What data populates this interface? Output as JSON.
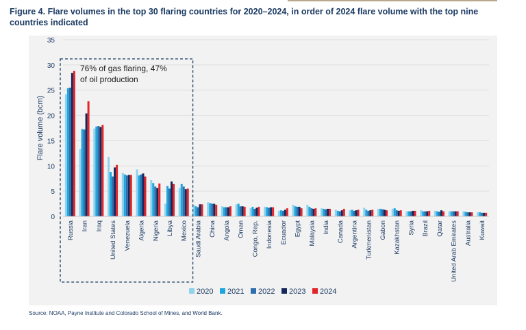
{
  "figure": {
    "title": "Figure 4. Flare volumes in the top 30 flaring countries for 2020–2024, in order of 2024 flare volume with the top nine countries indicated",
    "source": "Source: NOAA, Payne Institute and Colorado School of Mines, and World Bank."
  },
  "colors": {
    "2020": "#8fd3ee",
    "2021": "#1ea7df",
    "2022": "#2f6fad",
    "2023": "#13295b",
    "2024": "#e2252b",
    "panel": "#f2f2f2",
    "box": "#1b3a63"
  },
  "chart_data": {
    "type": "bar",
    "ylabel": "Flare volume (bcm)",
    "xlabel": "",
    "ylim": [
      0,
      35
    ],
    "yticks": [
      0,
      5,
      10,
      15,
      20,
      25,
      30,
      35
    ],
    "grid": true,
    "legend_position": "bottom-center",
    "annotation": "76% of gas flaring, 47% of oil production",
    "highlighted_count": 9,
    "categories": [
      "Russia",
      "Iran",
      "Iraq",
      "United States",
      "Venezuela",
      "Algeria",
      "Nigeria",
      "Libya",
      "Mexico",
      "Saudi Arabia",
      "China",
      "Angola",
      "Oman",
      "Congo, Rep.",
      "Indonesia",
      "Ecuador",
      "Egypt",
      "Malaysia",
      "India",
      "Canada",
      "Argentina",
      "Turkmenistan",
      "Gabon",
      "Kazakhstan",
      "Syria",
      "Brazil",
      "Qatar",
      "United Arab Emirates",
      "Australia",
      "Kuwait"
    ],
    "series": [
      {
        "name": "2020",
        "values": [
          24.2,
          13.3,
          17.4,
          11.8,
          8.6,
          9.3,
          7.2,
          2.5,
          5.6,
          2.3,
          2.8,
          2.0,
          2.4,
          1.6,
          1.9,
          1.1,
          2.3,
          2.3,
          1.6,
          1.3,
          1.2,
          1.7,
          1.5,
          1.5,
          1.0,
          1.2,
          1.1,
          1.0,
          1.0,
          0.8
        ]
      },
      {
        "name": "2021",
        "values": [
          25.4,
          17.3,
          17.8,
          8.8,
          8.3,
          8.1,
          6.6,
          6.0,
          6.4,
          2.0,
          2.6,
          1.8,
          2.5,
          1.9,
          1.8,
          1.2,
          2.0,
          1.9,
          1.5,
          1.1,
          1.3,
          1.3,
          1.5,
          1.6,
          1.0,
          1.0,
          1.0,
          1.0,
          0.9,
          0.8
        ]
      },
      {
        "name": "2022",
        "values": [
          25.5,
          17.2,
          17.9,
          7.9,
          8.1,
          8.3,
          5.9,
          5.5,
          5.9,
          1.8,
          2.5,
          1.8,
          2.0,
          1.5,
          1.7,
          1.1,
          1.9,
          1.6,
          1.4,
          1.0,
          1.1,
          1.1,
          1.4,
          1.2,
          1.0,
          1.0,
          0.9,
          1.0,
          0.8,
          0.7
        ]
      },
      {
        "name": "2023",
        "values": [
          28.4,
          20.4,
          17.7,
          9.7,
          8.2,
          8.5,
          5.6,
          6.9,
          5.4,
          2.4,
          2.5,
          1.8,
          2.0,
          1.7,
          1.8,
          1.3,
          1.9,
          1.5,
          1.5,
          1.2,
          1.2,
          1.2,
          1.3,
          1.1,
          1.1,
          1.0,
          1.2,
          1.0,
          0.8,
          0.7
        ]
      },
      {
        "name": "2024",
        "values": [
          28.8,
          22.8,
          18.1,
          10.2,
          8.2,
          7.9,
          6.5,
          6.4,
          5.5,
          2.4,
          2.3,
          2.0,
          1.9,
          1.9,
          1.8,
          1.6,
          1.6,
          1.6,
          1.5,
          1.5,
          1.3,
          1.3,
          1.2,
          1.2,
          1.1,
          1.1,
          1.0,
          1.0,
          0.8,
          0.7
        ]
      }
    ]
  }
}
